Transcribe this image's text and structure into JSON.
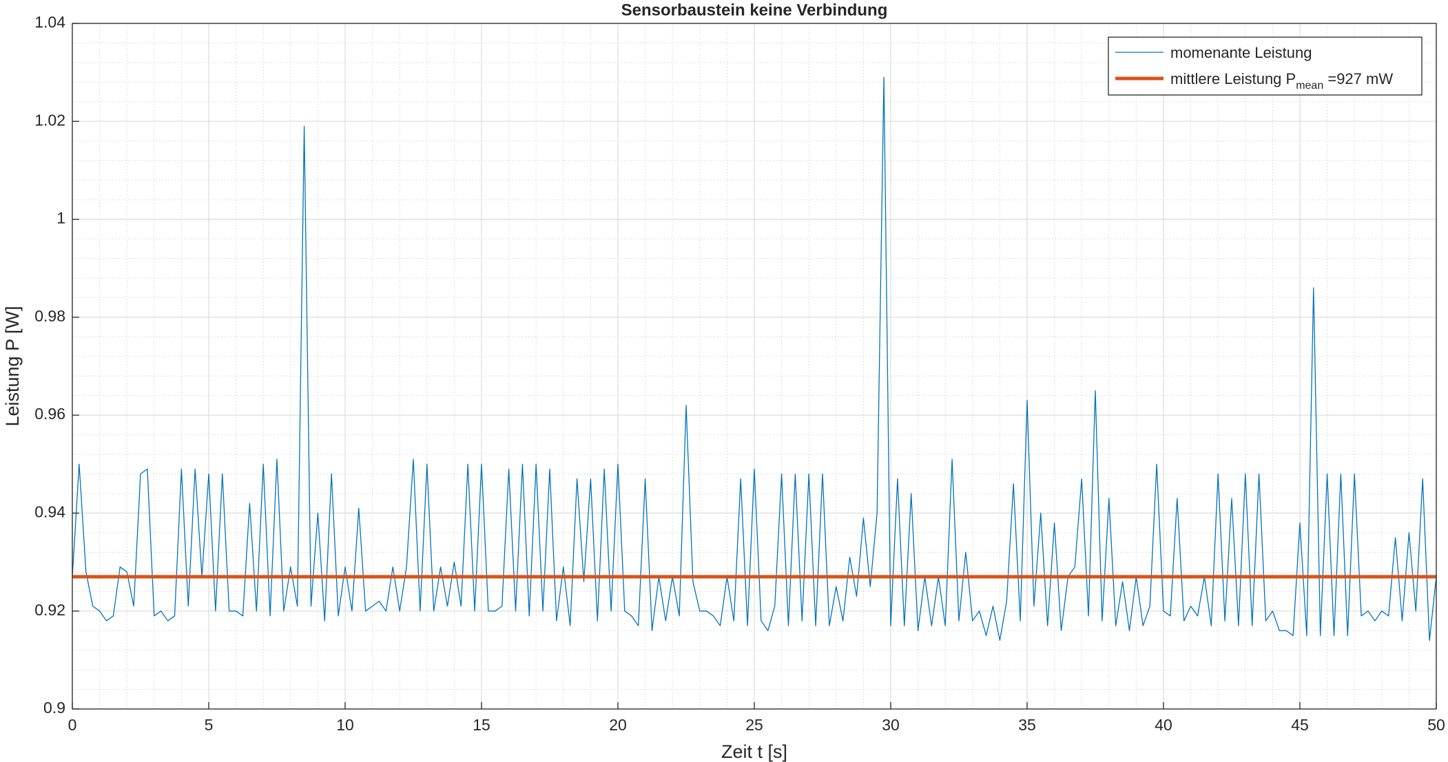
{
  "chart_data": {
    "type": "line",
    "title": "Sensorbaustein keine Verbindung",
    "xlabel": "Zeit t [s]",
    "ylabel": "Leistung P [W]",
    "xlim": [
      0,
      50
    ],
    "ylim": [
      0.9,
      1.04
    ],
    "xticks": [
      0,
      5,
      10,
      15,
      20,
      25,
      30,
      35,
      40,
      45,
      50
    ],
    "yticks": [
      0.9,
      0.92,
      0.94,
      0.96,
      0.98,
      1,
      1.02,
      1.04
    ],
    "grid": true,
    "minor_grid": true,
    "legend": "top-right",
    "series": [
      {
        "name": "momenante Leistung",
        "color": "#0072BD",
        "x": [
          0,
          0.25,
          0.5,
          0.75,
          1,
          1.25,
          1.5,
          1.75,
          2,
          2.25,
          2.5,
          2.75,
          3,
          3.25,
          3.5,
          3.75,
          4,
          4.25,
          4.5,
          4.75,
          5,
          5.25,
          5.5,
          5.75,
          6,
          6.25,
          6.5,
          6.75,
          7,
          7.25,
          7.5,
          7.75,
          8,
          8.25,
          8.5,
          8.75,
          9,
          9.25,
          9.5,
          9.75,
          10,
          10.25,
          10.5,
          10.75,
          11,
          11.25,
          11.5,
          11.75,
          12,
          12.25,
          12.5,
          12.75,
          13,
          13.25,
          13.5,
          13.75,
          14,
          14.25,
          14.5,
          14.75,
          15,
          15.25,
          15.5,
          15.75,
          16,
          16.25,
          16.5,
          16.75,
          17,
          17.25,
          17.5,
          17.75,
          18,
          18.25,
          18.5,
          18.75,
          19,
          19.25,
          19.5,
          19.75,
          20,
          20.25,
          20.5,
          20.75,
          21,
          21.25,
          21.5,
          21.75,
          22,
          22.25,
          22.5,
          22.75,
          23,
          23.25,
          23.5,
          23.75,
          24,
          24.25,
          24.5,
          24.75,
          25,
          25.25,
          25.5,
          25.75,
          26,
          26.25,
          26.5,
          26.75,
          27,
          27.25,
          27.5,
          27.75,
          28,
          28.25,
          28.5,
          28.75,
          29,
          29.25,
          29.5,
          29.75,
          30,
          30.25,
          30.5,
          30.75,
          31,
          31.25,
          31.5,
          31.75,
          32,
          32.25,
          32.5,
          32.75,
          33,
          33.25,
          33.5,
          33.75,
          34,
          34.25,
          34.5,
          34.75,
          35,
          35.25,
          35.5,
          35.75,
          36,
          36.25,
          36.5,
          36.75,
          37,
          37.25,
          37.5,
          37.75,
          38,
          38.25,
          38.5,
          38.75,
          39,
          39.25,
          39.5,
          39.75,
          40,
          40.25,
          40.5,
          40.75,
          41,
          41.25,
          41.5,
          41.75,
          42,
          42.25,
          42.5,
          42.75,
          43,
          43.25,
          43.5,
          43.75,
          44,
          44.25,
          44.5,
          44.75,
          45,
          45.25,
          45.5,
          45.75,
          46,
          46.25,
          46.5,
          46.75,
          47,
          47.25,
          47.5,
          47.75,
          48,
          48.25,
          48.5,
          48.75,
          49,
          49.25,
          49.5,
          49.75,
          50
        ],
        "values": [
          0.927,
          0.95,
          0.928,
          0.921,
          0.92,
          0.918,
          0.919,
          0.929,
          0.928,
          0.921,
          0.948,
          0.949,
          0.919,
          0.92,
          0.918,
          0.919,
          0.949,
          0.921,
          0.949,
          0.927,
          0.948,
          0.92,
          0.948,
          0.92,
          0.92,
          0.919,
          0.942,
          0.92,
          0.95,
          0.919,
          0.951,
          0.92,
          0.929,
          0.921,
          1.019,
          0.921,
          0.94,
          0.918,
          0.948,
          0.919,
          0.929,
          0.92,
          0.941,
          0.92,
          0.921,
          0.922,
          0.92,
          0.929,
          0.92,
          0.929,
          0.951,
          0.92,
          0.95,
          0.92,
          0.929,
          0.921,
          0.93,
          0.921,
          0.95,
          0.92,
          0.95,
          0.92,
          0.92,
          0.921,
          0.949,
          0.92,
          0.95,
          0.919,
          0.95,
          0.92,
          0.949,
          0.918,
          0.929,
          0.917,
          0.947,
          0.926,
          0.947,
          0.918,
          0.949,
          0.92,
          0.95,
          0.92,
          0.919,
          0.917,
          0.947,
          0.916,
          0.927,
          0.918,
          0.927,
          0.919,
          0.962,
          0.926,
          0.92,
          0.92,
          0.919,
          0.917,
          0.927,
          0.918,
          0.947,
          0.917,
          0.949,
          0.918,
          0.916,
          0.921,
          0.948,
          0.917,
          0.948,
          0.918,
          0.948,
          0.917,
          0.948,
          0.917,
          0.925,
          0.918,
          0.931,
          0.923,
          0.939,
          0.925,
          0.94,
          1.029,
          0.917,
          0.947,
          0.917,
          0.944,
          0.916,
          0.927,
          0.917,
          0.927,
          0.917,
          0.951,
          0.918,
          0.932,
          0.918,
          0.92,
          0.915,
          0.921,
          0.914,
          0.922,
          0.946,
          0.918,
          0.963,
          0.921,
          0.94,
          0.917,
          0.938,
          0.916,
          0.927,
          0.929,
          0.947,
          0.919,
          0.965,
          0.918,
          0.943,
          0.917,
          0.926,
          0.916,
          0.927,
          0.917,
          0.921,
          0.95,
          0.92,
          0.919,
          0.943,
          0.918,
          0.921,
          0.919,
          0.927,
          0.917,
          0.948,
          0.918,
          0.943,
          0.917,
          0.948,
          0.917,
          0.948,
          0.918,
          0.92,
          0.916,
          0.916,
          0.915,
          0.938,
          0.915,
          0.986,
          0.915,
          0.948,
          0.915,
          0.948,
          0.915,
          0.948,
          0.919,
          0.92,
          0.918,
          0.92,
          0.919,
          0.935,
          0.918,
          0.936,
          0.92,
          0.947,
          0.914,
          0.927
        ]
      },
      {
        "name": "mittlere Leistung P",
        "name_sub": "mean",
        "name_suffix": " =927 mW",
        "color": "#D95319",
        "x": [
          0,
          50
        ],
        "values": [
          0.927,
          0.927
        ]
      }
    ]
  }
}
